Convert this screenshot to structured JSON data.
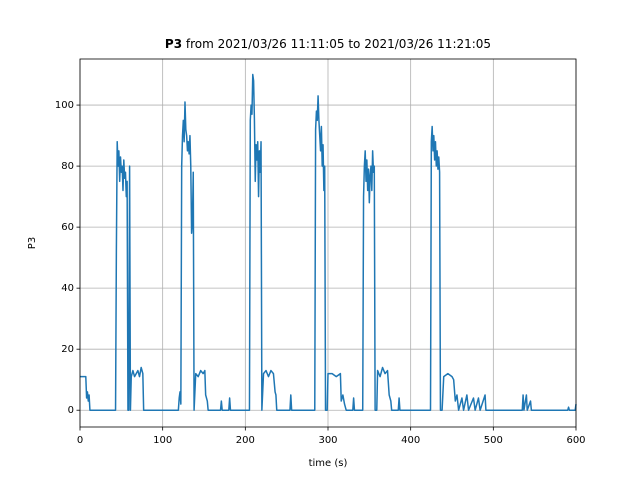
{
  "chart_data": {
    "type": "line",
    "title_bold": "P3",
    "title_rest": "from 2021/03/26 11:11:05 to 2021/03/26 11:21:05",
    "xlabel": "time (s)",
    "ylabel": "P3",
    "xlim": [
      0,
      600
    ],
    "ylim": [
      -5.5,
      115.1
    ],
    "xticks": [
      0,
      100,
      200,
      300,
      400,
      500,
      600
    ],
    "yticks": [
      0,
      20,
      40,
      60,
      80,
      100
    ],
    "grid": true,
    "series": [
      {
        "name": "P3",
        "color": "#1f77b4",
        "x": [
          0,
          7,
          8,
          9,
          10,
          11,
          12,
          43,
          44,
          45,
          46,
          47,
          48,
          49,
          50,
          51,
          52,
          53,
          54,
          55,
          56,
          57,
          58,
          59,
          60,
          61,
          62,
          64,
          66,
          68,
          70,
          72,
          74,
          76,
          77,
          119,
          120,
          121,
          122,
          123,
          124,
          125,
          126,
          127,
          128,
          129,
          130,
          131,
          132,
          133,
          134,
          135,
          136,
          137,
          138,
          140,
          143,
          146,
          149,
          151,
          152,
          154,
          155,
          170,
          171,
          172,
          180,
          181,
          182,
          205,
          206,
          207,
          208,
          209,
          210,
          211,
          212,
          213,
          214,
          215,
          216,
          217,
          218,
          219,
          220,
          222,
          225,
          228,
          231,
          234,
          236,
          237,
          238,
          254,
          255,
          256,
          284,
          285,
          286,
          287,
          288,
          289,
          290,
          291,
          292,
          293,
          294,
          295,
          296,
          297,
          299,
          300,
          305,
          310,
          315,
          316,
          318,
          320,
          322,
          330,
          331,
          332,
          340,
          342,
          343,
          344,
          345,
          346,
          347,
          348,
          349,
          350,
          351,
          352,
          353,
          354,
          355,
          356,
          357,
          359,
          360,
          363,
          366,
          369,
          372,
          374,
          376,
          377,
          385,
          386,
          387,
          424,
          425,
          426,
          427,
          428,
          429,
          430,
          431,
          432,
          433,
          434,
          435,
          436,
          438,
          440,
          445,
          450,
          452,
          454,
          456,
          458,
          462,
          464,
          468,
          470,
          476,
          478,
          482,
          484,
          490,
          491,
          535,
          536,
          537,
          540,
          541,
          545,
          546,
          590,
          591,
          592,
          599,
          600
        ],
        "values": [
          11,
          11,
          4,
          6,
          3,
          5,
          0,
          0,
          52,
          88,
          80,
          85,
          75,
          83,
          78,
          80,
          72,
          82,
          76,
          78,
          70,
          75,
          0,
          0,
          80,
          0,
          11,
          13,
          11,
          12,
          13,
          11,
          14,
          12,
          0,
          0,
          4,
          6,
          2,
          80,
          90,
          95,
          88,
          101,
          92,
          90,
          85,
          88,
          84,
          90,
          80,
          58,
          62,
          78,
          0,
          12,
          11,
          13,
          12,
          13,
          5,
          3,
          0,
          0,
          3,
          0,
          0,
          4,
          0,
          0,
          95,
          100,
          97,
          110,
          108,
          95,
          75,
          87,
          82,
          88,
          70,
          85,
          78,
          88,
          0,
          12,
          13,
          11,
          13,
          12,
          6,
          5,
          0,
          0,
          5,
          0,
          0,
          92,
          98,
          95,
          103,
          95,
          90,
          85,
          93,
          80,
          87,
          72,
          80,
          0,
          0,
          12,
          12,
          11,
          12,
          3,
          5,
          2,
          0,
          0,
          4,
          0,
          0,
          0,
          70,
          80,
          85,
          75,
          82,
          72,
          79,
          68,
          77,
          80,
          72,
          85,
          78,
          80,
          0,
          0,
          13,
          11,
          14,
          12,
          13,
          5,
          3,
          0,
          0,
          4,
          0,
          0,
          88,
          93,
          85,
          90,
          82,
          88,
          80,
          85,
          79,
          83,
          78,
          0,
          0,
          11,
          12,
          11,
          10,
          3,
          5,
          0,
          4,
          0,
          5,
          0,
          4,
          0,
          4,
          0,
          5,
          0,
          0,
          5,
          0,
          5,
          0,
          3,
          0,
          0,
          1,
          0,
          0,
          2
        ]
      }
    ]
  }
}
